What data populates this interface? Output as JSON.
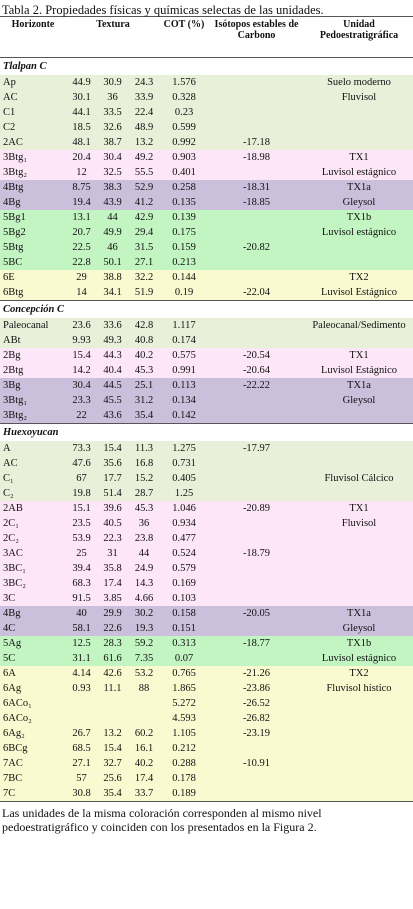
{
  "header": {
    "title": "Tabla 2. Propiedades físicas y químicas selectas de las unidades.",
    "columns": [
      "Horizonte",
      "Textura",
      "COT (%)",
      "Isótopos estables de Carbono",
      "Unidad Pedoestratigráfica"
    ]
  },
  "sections": [
    {
      "title": "Tlalpan C",
      "groups": [
        {
          "color": "#e8f0da",
          "rows": [
            [
              "Ap",
              "44.9",
              "30.9",
              "24.3",
              "1.576",
              null,
              "Suelo moderno"
            ],
            [
              "AC",
              "30.1",
              "36",
              "33.9",
              "0.328",
              null,
              "Fluvisol"
            ],
            [
              "C1",
              "44.1",
              "33.5",
              "22.4",
              "0.23",
              null,
              null
            ],
            [
              "C2",
              "18.5",
              "32.6",
              "48.9",
              "0.599",
              null,
              null
            ],
            [
              "2AC",
              "48.1",
              "38.7",
              "13.2",
              "0.992",
              "-17.18",
              null
            ]
          ]
        },
        {
          "color": "#fde6f7",
          "rows": [
            [
              "3Btg₁",
              "20.4",
              "30.4",
              "49.2",
              "0.903",
              "-18.98",
              "TX1"
            ],
            [
              "3Btg₂",
              "12",
              "32.5",
              "55.5",
              "0.401",
              null,
              "Luvisol estágnico"
            ]
          ]
        },
        {
          "color": "#cbbfdb",
          "rows": [
            [
              "4Btg",
              "8.75",
              "38.3",
              "52.9",
              "0.258",
              "-18.31",
              "TX1a"
            ],
            [
              "4Bg",
              "19.4",
              "43.9",
              "41.2",
              "0.135",
              "-18.85",
              "Gleysol"
            ]
          ]
        },
        {
          "color": "#c3f5c3",
          "rows": [
            [
              "5Bg1",
              "13.1",
              "44",
              "42.9",
              "0.139",
              null,
              "TX1b"
            ],
            [
              "5Bg2",
              "20.7",
              "49.9",
              "29.4",
              "0.175",
              null,
              "Luvisol estágnico"
            ],
            [
              "5Btg",
              "22.5",
              "46",
              "31.5",
              "0.159",
              "-20.82",
              null
            ],
            [
              "5BC",
              "22.8",
              "50.1",
              "27.1",
              "0.213",
              null,
              null
            ]
          ]
        },
        {
          "color": "#fafad0",
          "rows": [
            [
              "6E",
              "29",
              "38.8",
              "32.2",
              "0.144",
              null,
              "TX2"
            ],
            [
              "6Btg",
              "14",
              "34.1",
              "51.9",
              "0.19",
              "-22.04",
              "Luvisol Estágnico"
            ]
          ]
        }
      ]
    },
    {
      "title": "Concepción C",
      "groups": [
        {
          "color": "#e8f0da",
          "rows": [
            [
              "Paleocanal",
              "23.6",
              "33.6",
              "42.8",
              "1.117",
              null,
              "Paleocanal/Sedimento"
            ],
            [
              "ABt",
              "9.93",
              "49.3",
              "40.8",
              "0.174",
              null,
              null
            ]
          ]
        },
        {
          "color": "#fde6f7",
          "rows": [
            [
              "2Bg",
              "15.4",
              "44.3",
              "40.2",
              "0.575",
              "-20.54",
              "TX1"
            ],
            [
              "2Btg",
              "14.2",
              "40.4",
              "45.3",
              "0.991",
              "-20.64",
              "Luvisol Estágnico"
            ]
          ]
        },
        {
          "color": "#cbbfdb",
          "rows": [
            [
              "3Bg",
              "30.4",
              "44.5",
              "25.1",
              "0.113",
              "-22.22",
              "TX1a"
            ],
            [
              "3Btg₁",
              "23.3",
              "45.5",
              "31.2",
              "0.134",
              null,
              "Gleysol"
            ],
            [
              "3Btg₂",
              "22",
              "43.6",
              "35.4",
              "0.142",
              null,
              null
            ]
          ]
        }
      ]
    },
    {
      "title": "Huexoyucan",
      "groups": [
        {
          "color": "#e8f0da",
          "rows": [
            [
              "A",
              "73.3",
              "15.4",
              "11.3",
              "1.275",
              "-17.97",
              null
            ],
            [
              "AC",
              "47.6",
              "35.6",
              "16.8",
              "0.731",
              null,
              null
            ],
            [
              "C₁",
              "67",
              "17.7",
              "15.2",
              "0.405",
              null,
              "Fluvisol Cálcico"
            ],
            [
              "C₂",
              "19.8",
              "51.4",
              "28.7",
              "1.25",
              null,
              null
            ]
          ]
        },
        {
          "color": "#fde6f7",
          "rows": [
            [
              "2AB",
              "15.1",
              "39.6",
              "45.3",
              "1.046",
              "-20.89",
              "TX1"
            ],
            [
              "2C₁",
              "23.5",
              "40.5",
              "36",
              "0.934",
              null,
              "Fluvisol"
            ],
            [
              "2C₂",
              "53.9",
              "22.3",
              "23.8",
              "0.477",
              null,
              null
            ],
            [
              "3AC",
              "25",
              "31",
              "44",
              "0.524",
              "-18.79",
              null
            ],
            [
              "3BC₁",
              "39.4",
              "35.8",
              "24.9",
              "0.579",
              null,
              null
            ],
            [
              "3BC₂",
              "68.3",
              "17.4",
              "14.3",
              "0.169",
              null,
              null
            ],
            [
              "3C",
              "91.5",
              "3.85",
              "4.66",
              "0.103",
              null,
              null
            ]
          ]
        },
        {
          "color": "#cbbfdb",
          "rows": [
            [
              "4Bg",
              "40",
              "29.9",
              "30.2",
              "0.158",
              "-20.05",
              "TX1a"
            ],
            [
              "4C",
              "58.1",
              "22.6",
              "19.3",
              "0.151",
              null,
              "Gleysol"
            ]
          ]
        },
        {
          "color": "#c3f5c3",
          "rows": [
            [
              "5Ag",
              "12.5",
              "28.3",
              "59.2",
              "0.313",
              "-18.77",
              "TX1b"
            ],
            [
              "5C",
              "31.1",
              "61.6",
              "7.35",
              "0.07",
              null,
              "Luvisol estágnico"
            ]
          ]
        },
        {
          "color": "#fafad0",
          "rows": [
            [
              "6A",
              "4.14",
              "42.6",
              "53.2",
              "0.765",
              "-21.26",
              "TX2"
            ],
            [
              "6Ag",
              "0.93",
              "11.1",
              "88",
              "1.865",
              "-23.86",
              "Fluvisol hístico"
            ],
            [
              "6ACo₁",
              null,
              null,
              null,
              "5.272",
              "-26.52",
              null
            ],
            [
              "6ACo₂",
              null,
              null,
              null,
              "4.593",
              "-26.82",
              null
            ],
            [
              "6Ag₂",
              "26.7",
              "13.2",
              "60.2",
              "1.105",
              "-23.19",
              null
            ],
            [
              "6BCg",
              "68.5",
              "15.4",
              "16.1",
              "0.212",
              null,
              null
            ],
            [
              "7AC",
              "27.1",
              "32.7",
              "40.2",
              "0.288",
              "-10.91",
              null
            ],
            [
              "7BC",
              "57",
              "25.6",
              "17.4",
              "0.178",
              null,
              null
            ],
            [
              "7C",
              "30.8",
              "35.4",
              "33.7",
              "0.189",
              null,
              null
            ]
          ]
        }
      ]
    }
  ],
  "footnote": "Las unidades de la misma coloración corresponden al mismo nivel pedoestratigráfico y coinciden con los presentados en la Figura 2."
}
